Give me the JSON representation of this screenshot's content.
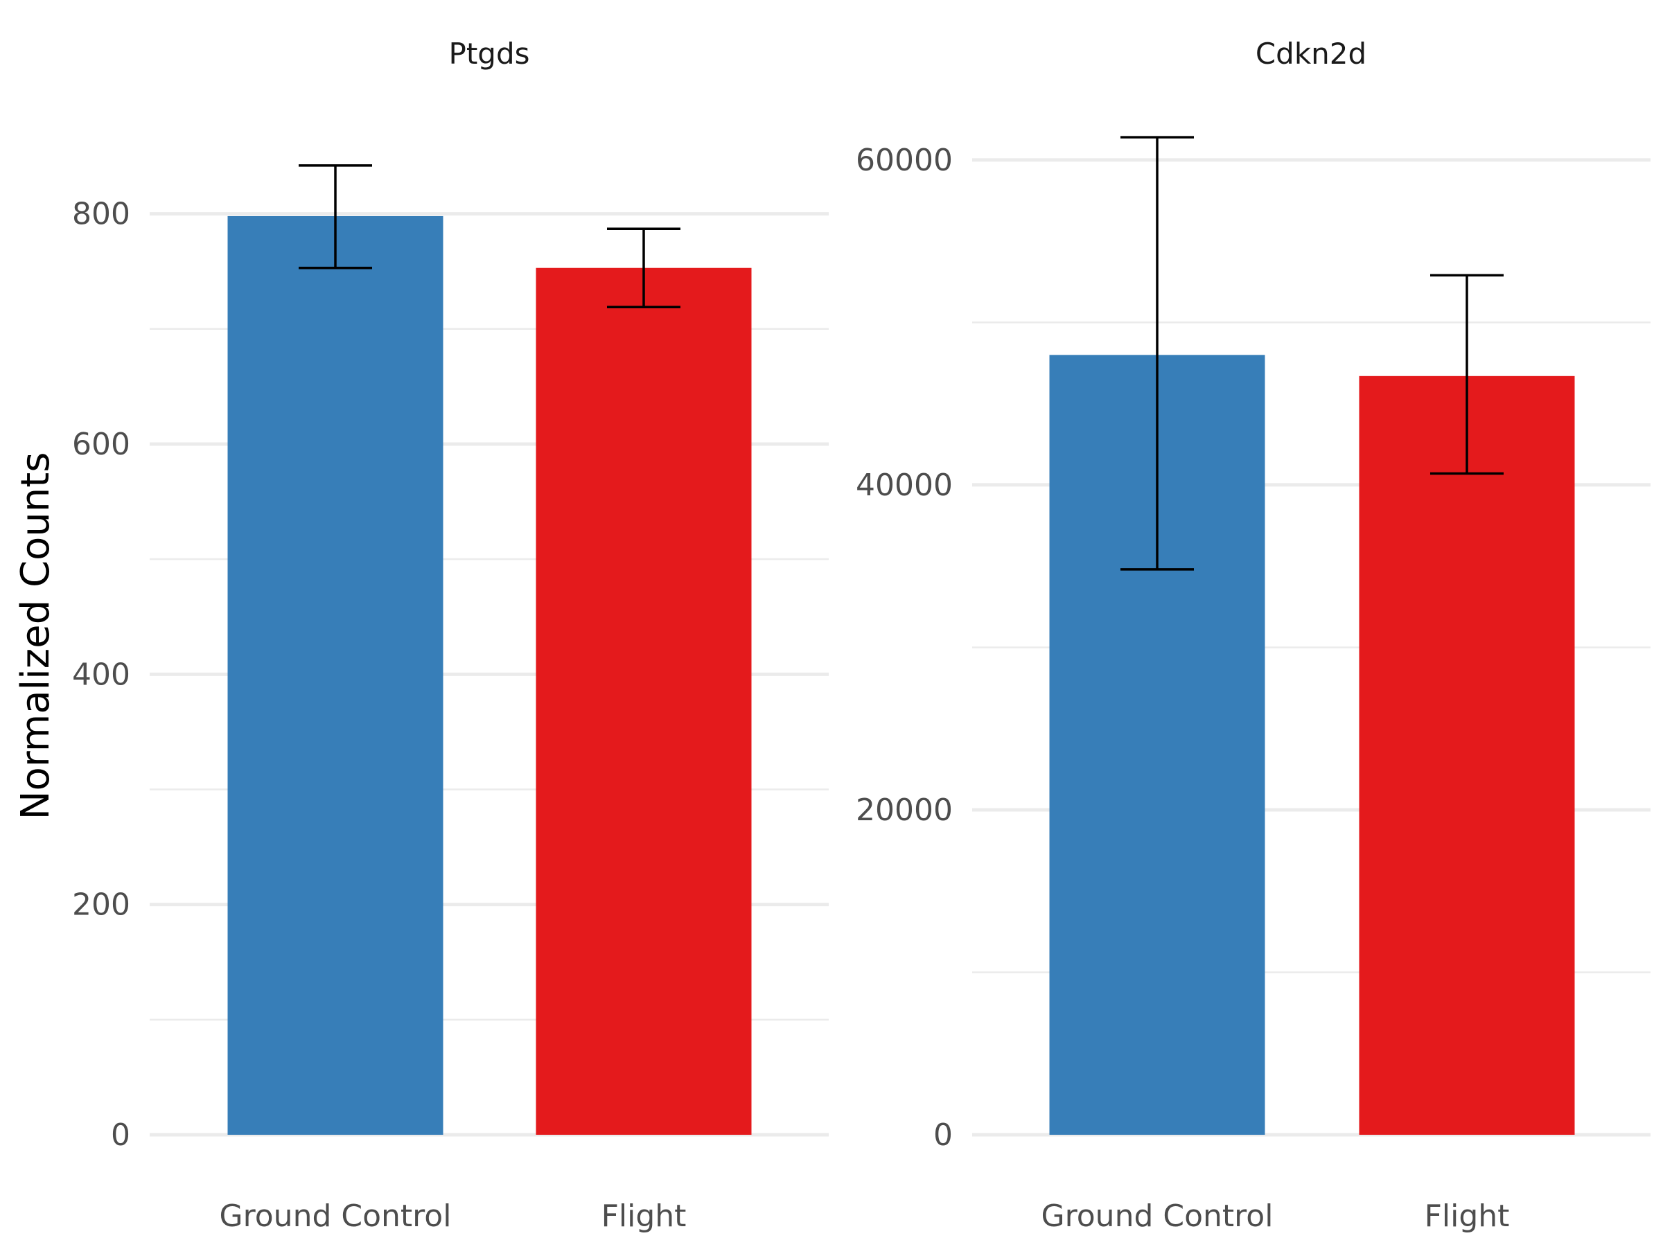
{
  "chart_data": {
    "type": "bar",
    "ylabel": "Normalized Counts",
    "categories": [
      "Ground Control",
      "Flight"
    ],
    "colors": {
      "Ground Control": "#377eb8",
      "Flight": "#e41a1c"
    },
    "grid": true,
    "panels": [
      {
        "title": "Ptgds",
        "ylim": [
          0,
          875
        ],
        "yticks": [
          0,
          200,
          400,
          600,
          800
        ],
        "ytick_labels": [
          "0",
          "200",
          "400",
          "600",
          "800"
        ],
        "values": [
          798,
          753
        ],
        "error_low": [
          753,
          719
        ],
        "error_high": [
          842,
          787
        ]
      },
      {
        "title": "Cdkn2d",
        "ylim": [
          0,
          62000
        ],
        "yticks": [
          0,
          20000,
          40000,
          60000
        ],
        "ytick_labels": [
          "0",
          "20000",
          "40000",
          "60000"
        ],
        "values": [
          48000,
          46700
        ],
        "error_low": [
          34800,
          40700
        ],
        "error_high": [
          61400,
          52900
        ]
      }
    ]
  }
}
